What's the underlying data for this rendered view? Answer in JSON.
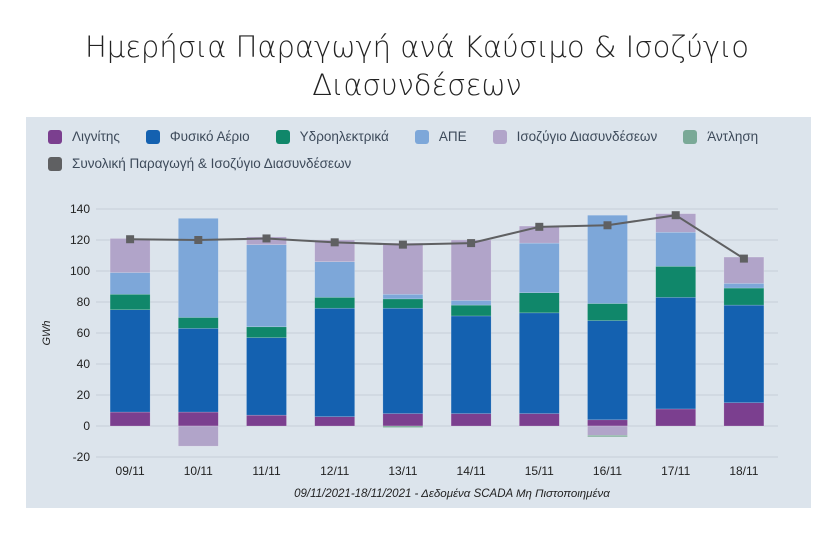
{
  "chart_data": {
    "type": "bar",
    "stacked": true,
    "title": [
      "Ημερήσια Παραγωγή ανά Καύσιμο & Ισοζύγιο",
      "Διασυνδέσεων"
    ],
    "subtitle": "09/11/2021-18/11/2021 - Δεδομένα SCADA Μη Πιστοποιημένα",
    "ylabel": "GWh",
    "xlabel": "",
    "ylim": [
      -20,
      140
    ],
    "yticks": [
      -20,
      0,
      20,
      40,
      60,
      80,
      100,
      120,
      140
    ],
    "grid": true,
    "legend_position": "top",
    "categories": [
      "09/11",
      "10/11",
      "11/11",
      "12/11",
      "13/11",
      "14/11",
      "15/11",
      "16/11",
      "17/11",
      "18/11"
    ],
    "series": [
      {
        "name": "Λιγνίτης",
        "color": "#7b3f8f",
        "type": "bar",
        "values": [
          9,
          9,
          7,
          6,
          8,
          8,
          8,
          4,
          11,
          15
        ]
      },
      {
        "name": "Φυσικό Αέριο",
        "color": "#1461b0",
        "type": "bar",
        "values": [
          66,
          54,
          50,
          70,
          68,
          63,
          65,
          64,
          72,
          63
        ]
      },
      {
        "name": "Υδροηλεκτρικά",
        "color": "#10876a",
        "type": "bar",
        "values": [
          10,
          7,
          7,
          7,
          6,
          7,
          13,
          11,
          20,
          11
        ]
      },
      {
        "name": "ΑΠΕ",
        "color": "#7da7d9",
        "type": "bar",
        "values": [
          14,
          64,
          53,
          23,
          3,
          3,
          32,
          57,
          22,
          3
        ]
      },
      {
        "name": "Ισοζύγιο Διασυνδέσεων",
        "color": "#b1a4c9",
        "type": "bar",
        "values": [
          22,
          -13,
          5,
          14,
          33,
          39,
          11,
          -6,
          12,
          17
        ]
      },
      {
        "name": "Άντληση",
        "color": "#7aa997",
        "type": "bar",
        "values": [
          0,
          0,
          0,
          0,
          -1,
          0,
          0,
          -1,
          0,
          0
        ]
      },
      {
        "name": "Συνολική Παραγωγή & Ισοζύγιο Διασυνδέσεων",
        "color": "#5f6062",
        "type": "line",
        "values": [
          120.5,
          120,
          121,
          118.5,
          117,
          118,
          128.5,
          129.5,
          136,
          108
        ]
      }
    ]
  }
}
